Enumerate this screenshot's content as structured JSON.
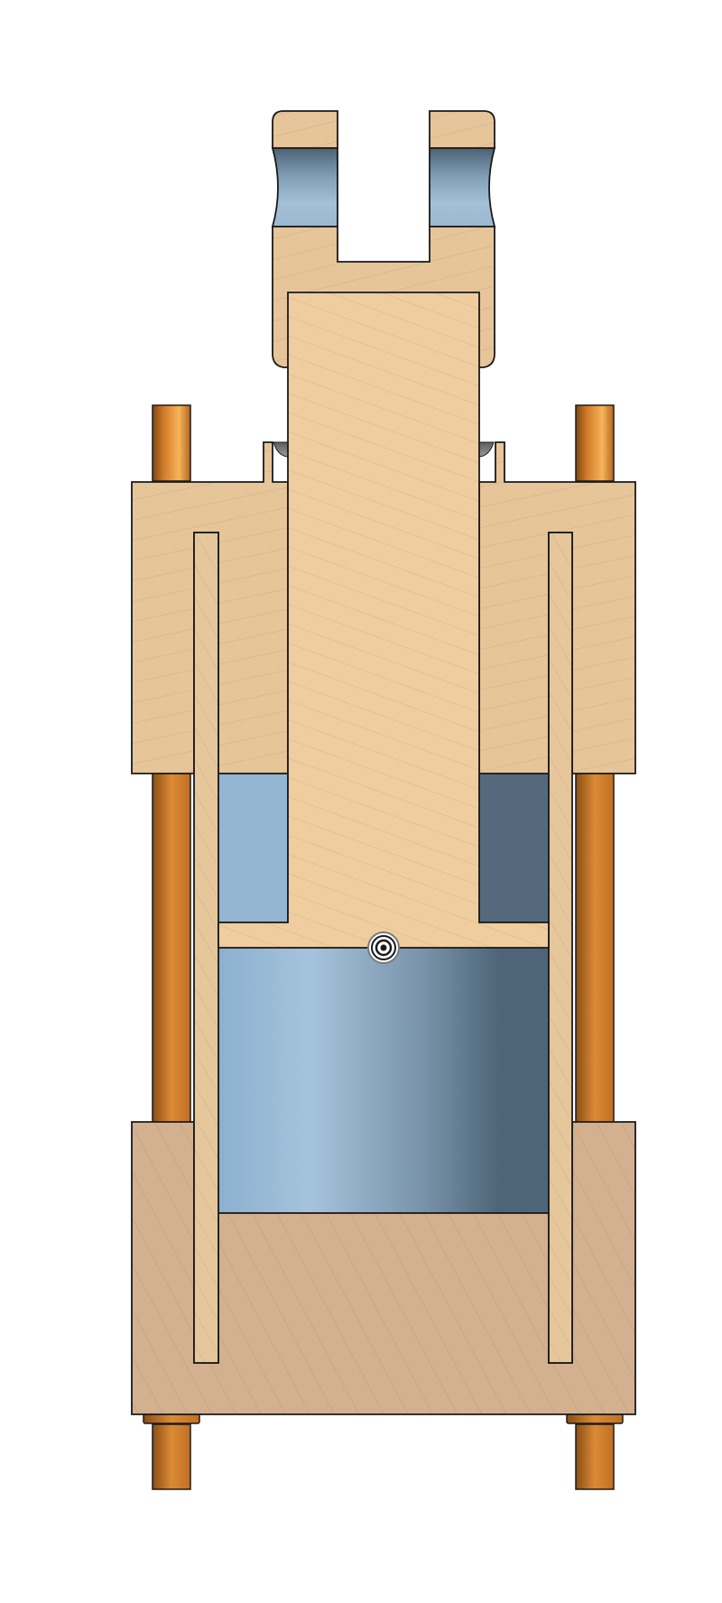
{
  "diagram": {
    "subject": "hydraulic-cylinder-cross-section",
    "colors": {
      "background": "#ffffff",
      "outline": "#1a1a1a",
      "head_block": "#e6c599",
      "piston_rod": "#efcd9f",
      "cap_block": "#d3b08f",
      "tube_wall": "#e6c79c",
      "clevis": "#e6c59b",
      "tie_rod_dark": "#8a4f14",
      "tie_rod_mid": "#d27c2a",
      "tie_rod_light": "#f7b45a",
      "fluid_light": "#a5c3dc",
      "fluid_dark": "#4e6577",
      "hatch": "#bfa07a"
    },
    "components": [
      "clevis",
      "piston-rod",
      "head-block",
      "cap-block",
      "cylinder-tube",
      "tie-rods",
      "fluid-chambers",
      "center-marker"
    ]
  }
}
